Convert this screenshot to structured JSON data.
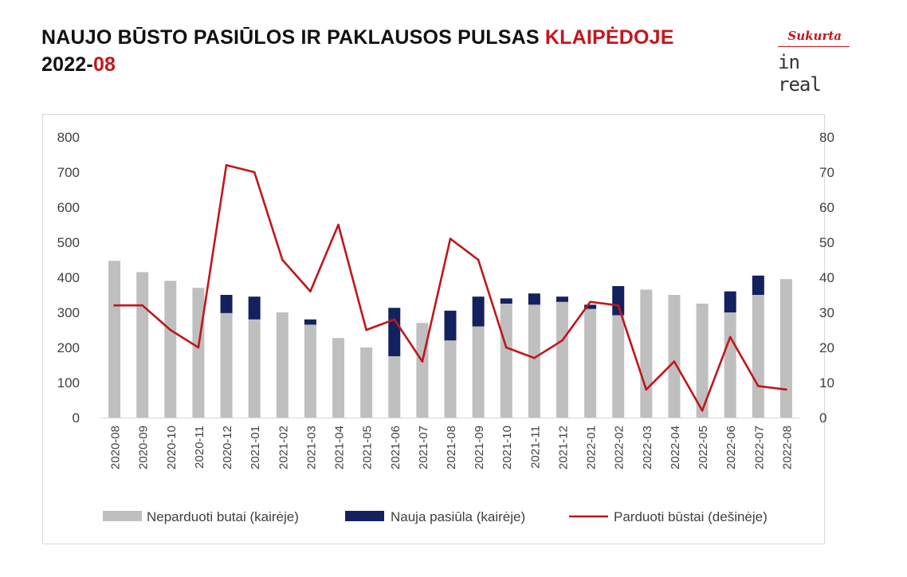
{
  "header": {
    "title_main": "NAUJO BŪSTO PASIŪLOS IR PAKLAUSOS PULSAS ",
    "title_accent": "KLAIPĖDOJE",
    "subtitle_main": "2022-",
    "subtitle_accent": "08"
  },
  "logo": {
    "top_text": "Sukurta",
    "bottom_text": "in real"
  },
  "colors": {
    "accent": "#c4161c",
    "unsold_bar": "#bfbfbf",
    "new_supply_bar": "#14215f",
    "sold_line": "#c0161b"
  },
  "chart_data": {
    "type": "bar",
    "categories": [
      "2020-08",
      "2020-09",
      "2020-10",
      "2020-11",
      "2020-12",
      "2021-01",
      "2021-02",
      "2021-03",
      "2021-04",
      "2021-05",
      "2021-06",
      "2021-07",
      "2021-08",
      "2021-09",
      "2021-10",
      "2021-11",
      "2021-12",
      "2022-01",
      "2022-02",
      "2022-03",
      "2022-04",
      "2022-05",
      "2022-06",
      "2022-07",
      "2022-08"
    ],
    "series": [
      {
        "name": "Neparduoti butai (kairėje)",
        "kind": "bar",
        "axis": "left",
        "values": [
          447,
          415,
          390,
          370,
          298,
          280,
          300,
          265,
          227,
          200,
          175,
          270,
          220,
          260,
          325,
          322,
          330,
          310,
          292,
          365,
          350,
          325,
          300,
          350,
          395
        ]
      },
      {
        "name": "Nauja pasiūla (kairėje)",
        "kind": "stacked-bar",
        "axis": "left",
        "values": [
          0,
          0,
          0,
          0,
          52,
          65,
          0,
          15,
          0,
          0,
          138,
          0,
          85,
          85,
          15,
          32,
          15,
          12,
          83,
          0,
          0,
          0,
          60,
          55,
          0
        ]
      },
      {
        "name": "Parduoti būstai (dešinėje)",
        "kind": "line",
        "axis": "right",
        "values": [
          32,
          32,
          25,
          20,
          72,
          70,
          45,
          36,
          55,
          25,
          28,
          16,
          51,
          45,
          20,
          17,
          22,
          33,
          32,
          8,
          16,
          2,
          23,
          9,
          8
        ]
      }
    ],
    "ylim_left": [
      0,
      800
    ],
    "yticks_left": [
      "0",
      "100",
      "200",
      "300",
      "400",
      "500",
      "600",
      "700",
      "800"
    ],
    "ylim_right": [
      0,
      80
    ],
    "yticks_right": [
      "0",
      "10",
      "20",
      "30",
      "40",
      "50",
      "60",
      "70",
      "80"
    ],
    "grid": false,
    "legend_position": "bottom"
  }
}
